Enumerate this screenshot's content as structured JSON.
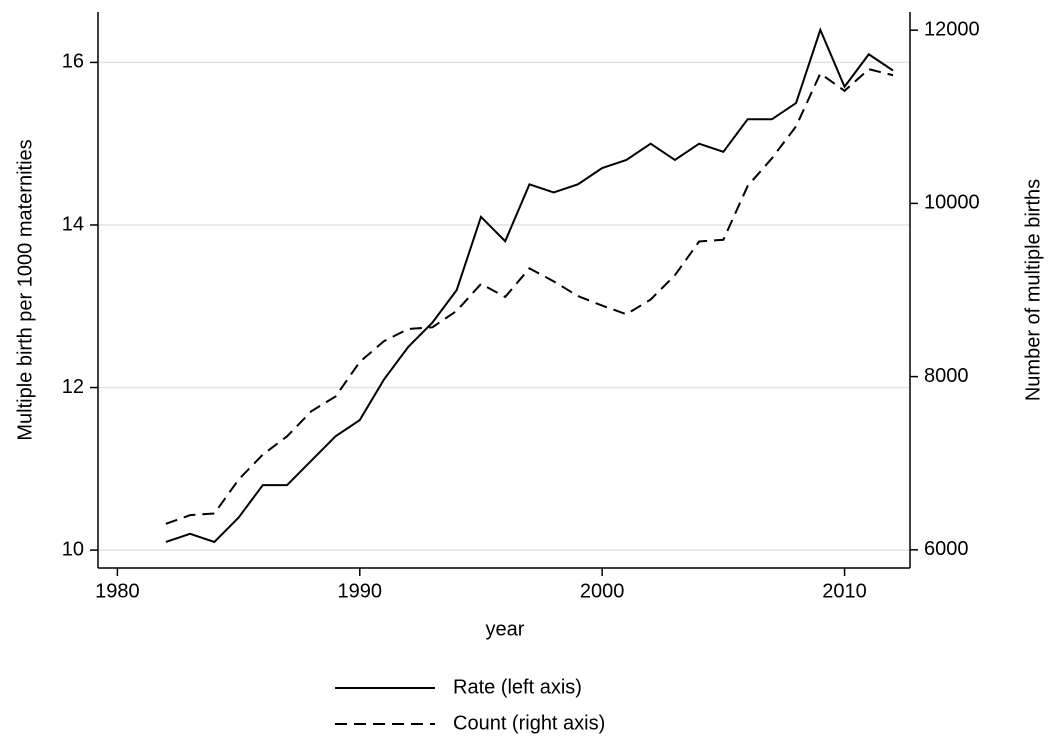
{
  "chart_data": {
    "type": "line",
    "x_label": "year",
    "y_label": "Multiple birth per 1000 maternities",
    "y2_label": "Number of multiple births",
    "x": [
      1982,
      1983,
      1984,
      1985,
      1986,
      1987,
      1988,
      1989,
      1990,
      1991,
      1992,
      1993,
      1994,
      1995,
      1996,
      1997,
      1998,
      1999,
      2000,
      2001,
      2002,
      2003,
      2004,
      2005,
      2006,
      2007,
      2008,
      2009,
      2010,
      2011,
      2012
    ],
    "series": [
      {
        "name": "Rate (left axis)",
        "color": "#000000",
        "dash": "solid",
        "values": [
          10.1,
          10.2,
          10.1,
          10.4,
          10.8,
          10.8,
          11.1,
          11.4,
          11.6,
          12.1,
          12.5,
          12.8,
          13.2,
          14.1,
          13.8,
          14.5,
          14.4,
          14.5,
          14.7,
          14.8,
          15.0,
          14.8,
          15.0,
          14.9,
          15.3,
          15.3,
          15.5,
          16.4,
          15.7,
          16.1,
          15.9
        ]
      },
      {
        "name": "Count (right axis)",
        "color": "#000000",
        "dash": "dashed",
        "axis": "y2",
        "values": [
          6300,
          6400,
          6420,
          6810,
          7100,
          7310,
          7600,
          7770,
          8170,
          8410,
          8550,
          8570,
          8760,
          9070,
          8920,
          9250,
          9100,
          8930,
          8820,
          8720,
          8890,
          9170,
          9560,
          9580,
          10200,
          10520,
          10890,
          11500,
          11300,
          11550,
          11480
        ]
      }
    ],
    "xlim": [
      1979.2,
      2012.7
    ],
    "xticks": [
      1980,
      1990,
      2000,
      2010
    ],
    "ylim": [
      9.78,
      16.62
    ],
    "yticks": [
      10,
      12,
      14,
      16
    ],
    "y2lim": [
      5790,
      12210
    ],
    "y2ticks": [
      6000,
      8000,
      10000,
      12000
    ],
    "grid": true,
    "legend": "bottom"
  }
}
